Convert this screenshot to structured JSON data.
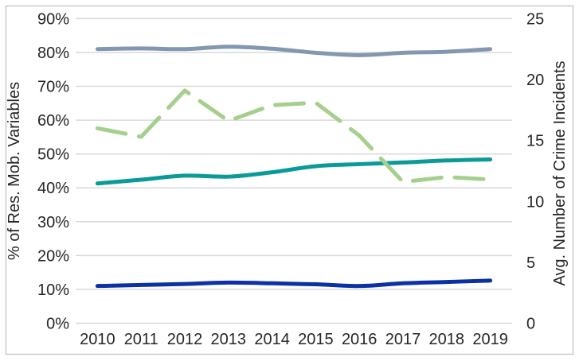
{
  "page": {
    "background": "#FFFFFF",
    "frame_border_color": "#C9C9C9"
  },
  "chart_data": {
    "type": "line",
    "title": "",
    "grid": true,
    "legend": false,
    "colors": {
      "gridline": "#D9D9D9",
      "text": "#262626"
    },
    "x_axis": {
      "ticks": [
        "2010",
        "2011",
        "2012",
        "2013",
        "2014",
        "2015",
        "2016",
        "2017",
        "2018",
        "2019"
      ]
    },
    "left_axis": {
      "label": "% of Res. Mob. Variables",
      "min": 0,
      "max": 90,
      "step": 10,
      "tick_format": "percent",
      "ticks": [
        "0%",
        "10%",
        "20%",
        "30%",
        "40%",
        "50%",
        "60%",
        "70%",
        "80%",
        "90%"
      ]
    },
    "right_axis": {
      "label": "Avg. Number of Crime Incidents",
      "min": 0,
      "max": 25,
      "step": 5,
      "ticks": [
        "0",
        "5",
        "10",
        "15",
        "20",
        "25"
      ]
    },
    "series": [
      {
        "name": "slate",
        "axis": "left",
        "style": "solid",
        "color": "#8497B0",
        "values": [
          81,
          81.2,
          81,
          81.7,
          81.1,
          79.9,
          79.2,
          79.9,
          80.2,
          81
        ]
      },
      {
        "name": "teal",
        "axis": "left",
        "style": "solid",
        "color": "#0B9A9A",
        "values": [
          41.3,
          42.4,
          43.6,
          43.3,
          44.6,
          46.4,
          47,
          47.5,
          48.1,
          48.4
        ]
      },
      {
        "name": "navy",
        "axis": "left",
        "style": "solid",
        "color": "#0B31A5",
        "values": [
          11,
          11.3,
          11.6,
          12,
          11.8,
          11.5,
          11,
          11.8,
          12.2,
          12.6
        ]
      },
      {
        "name": "green-dashed",
        "axis": "right",
        "style": "dashed",
        "color": "#A5CF8D",
        "values": [
          16,
          15.3,
          19.1,
          16.6,
          17.9,
          18.1,
          15.4,
          11.6,
          12,
          11.8
        ]
      }
    ]
  }
}
